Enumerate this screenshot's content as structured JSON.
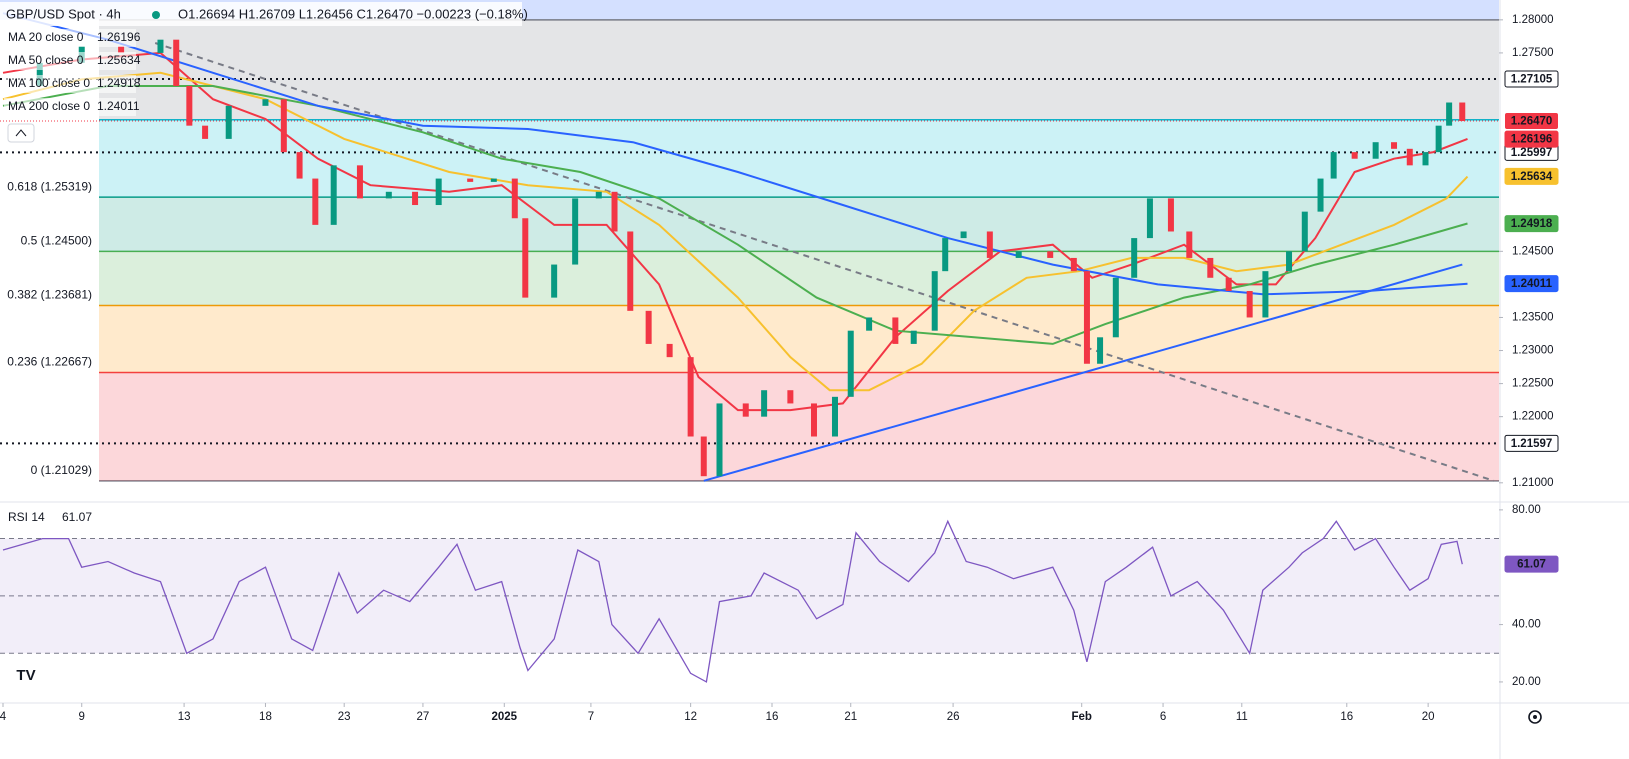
{
  "chart_data": [
    {
      "type": "candlestick",
      "title": "GBP/USD Spot · 4h",
      "subtitle": "O1.26694 H1.26709 L1.26456 C1.26470 −0.00223 (−0.18%)",
      "x": [
        0,
        1.4,
        3.0,
        4.5,
        6.0,
        6.6,
        7.1,
        7.7,
        8.6,
        10.0,
        10.7,
        11.3,
        11.9,
        12.6,
        13.6,
        14.7,
        15.7,
        16.6,
        17.8,
        18.7,
        19.5,
        19.9,
        21.0,
        21.8,
        22.7,
        23.3,
        23.9,
        24.6,
        25.4,
        26.2,
        26.7,
        27.3,
        28.3,
        29.0,
        30.0,
        30.9,
        31.7,
        32.3,
        33.0,
        34.0,
        34.7,
        35.5,
        35.9,
        36.6,
        37.6,
        38.7,
        39.9,
        40.8,
        41.3,
        41.8,
        42.4,
        43.1,
        43.7,
        44.5,
        45.2,
        46.0,
        46.7,
        47.5,
        48.1,
        49.0,
        49.6,
        50.2,
        50.7,
        51.5,
        52.3,
        53.0,
        53.6,
        54.2,
        54.7,
        55.1,
        55.6
      ],
      "values": [
        1.27,
        1.2735,
        1.276,
        1.275,
        1.277,
        1.27,
        1.264,
        1.262,
        1.267,
        1.268,
        1.26,
        1.256,
        1.249,
        1.258,
        1.253,
        1.254,
        1.252,
        1.256,
        1.2555,
        1.256,
        1.25,
        1.238,
        1.243,
        1.253,
        1.254,
        1.248,
        1.236,
        1.231,
        1.229,
        1.217,
        1.211,
        1.222,
        1.22,
        1.224,
        1.222,
        1.217,
        1.223,
        1.233,
        1.235,
        1.231,
        1.233,
        1.242,
        1.247,
        1.248,
        1.244,
        1.245,
        1.244,
        1.242,
        1.228,
        1.232,
        1.241,
        1.247,
        1.253,
        1.248,
        1.244,
        1.241,
        1.239,
        1.235,
        1.242,
        1.245,
        1.251,
        1.256,
        1.26,
        1.259,
        1.2615,
        1.2605,
        1.258,
        1.26,
        1.264,
        1.2675,
        1.2647
      ],
      "up_color": "#089981",
      "down_color": "#f23645",
      "xlim": [
        0,
        57
      ],
      "xticks": [
        {
          "value": 0,
          "label": "4"
        },
        {
          "value": 3.0,
          "label": "9"
        },
        {
          "value": 6.9,
          "label": "13"
        },
        {
          "value": 10.0,
          "label": "18"
        },
        {
          "value": 13.0,
          "label": "23"
        },
        {
          "value": 16.0,
          "label": "27"
        },
        {
          "value": 19.1,
          "label": "2025",
          "bold": true
        },
        {
          "value": 22.4,
          "label": "7"
        },
        {
          "value": 26.2,
          "label": "12"
        },
        {
          "value": 29.3,
          "label": "16"
        },
        {
          "value": 32.3,
          "label": "21"
        },
        {
          "value": 36.2,
          "label": "26"
        },
        {
          "value": 41.1,
          "label": "Feb",
          "bold": true
        },
        {
          "value": 44.2,
          "label": "6"
        },
        {
          "value": 47.2,
          "label": "11"
        },
        {
          "value": 51.2,
          "label": "16"
        },
        {
          "value": 54.3,
          "label": "20"
        }
      ],
      "ylim": [
        1.2074,
        1.283
      ],
      "yticks": [
        {
          "value": 1.28,
          "label": "1.28000"
        },
        {
          "value": 1.275,
          "label": "1.27500"
        },
        {
          "value": 1.245,
          "label": "1.24500"
        },
        {
          "value": 1.235,
          "label": "1.23500"
        },
        {
          "value": 1.23,
          "label": "1.23000"
        },
        {
          "value": 1.225,
          "label": "1.22500"
        },
        {
          "value": 1.22,
          "label": "1.22000"
        },
        {
          "value": 1.21,
          "label": "1.21000"
        }
      ],
      "last_price": {
        "value": 1.2647,
        "label": "1.26470"
      },
      "last_price_color": "#f23645",
      "series": [
        {
          "name": "MA 20 close 0",
          "color": "#f23645",
          "text_color": "#ffffff",
          "last": 1.26196,
          "x": [
            0,
            3,
            6,
            8,
            10,
            12,
            14,
            17,
            19,
            21,
            23,
            25,
            26.5,
            28,
            30,
            32,
            34,
            36,
            38,
            40,
            41.5,
            43,
            45,
            47,
            48.5,
            50,
            51.5,
            53,
            54.5,
            55.8
          ],
          "values": [
            1.272,
            1.274,
            1.275,
            1.268,
            1.265,
            1.259,
            1.255,
            1.254,
            1.255,
            1.249,
            1.249,
            1.24,
            1.226,
            1.221,
            1.221,
            1.222,
            1.232,
            1.239,
            1.245,
            1.246,
            1.241,
            1.243,
            1.246,
            1.24,
            1.24,
            1.247,
            1.257,
            1.259,
            1.26,
            1.262
          ]
        },
        {
          "name": "MA 50 close 0",
          "color": "#f7c12e",
          "text_color": "#131722",
          "last": 1.25634,
          "x": [
            0,
            3,
            6,
            10,
            13,
            17,
            20,
            23,
            25,
            28,
            30,
            31.5,
            33,
            35,
            37,
            39,
            41,
            43,
            45,
            47,
            49,
            51,
            53,
            55,
            55.8
          ],
          "values": [
            1.268,
            1.271,
            1.272,
            1.268,
            1.262,
            1.257,
            1.255,
            1.254,
            1.249,
            1.238,
            1.229,
            1.224,
            1.224,
            1.228,
            1.236,
            1.241,
            1.242,
            1.244,
            1.244,
            1.242,
            1.243,
            1.246,
            1.249,
            1.253,
            1.2563
          ]
        },
        {
          "name": "MA 100 close 0",
          "color": "#4caf50",
          "text_color": "#ffffff",
          "last": 1.24918,
          "x": [
            0,
            4,
            8,
            12,
            16,
            19,
            22,
            25,
            28,
            31,
            34,
            37,
            40,
            42,
            45,
            47.5,
            50,
            53,
            55.8
          ],
          "values": [
            1.267,
            1.27,
            1.27,
            1.267,
            1.263,
            1.259,
            1.257,
            1.253,
            1.246,
            1.238,
            1.233,
            1.232,
            1.231,
            1.234,
            1.238,
            1.24,
            1.243,
            1.246,
            1.2492
          ]
        },
        {
          "name": "MA 200 close 0",
          "color": "#2962ff",
          "text_color": "#ffffff",
          "last": 1.24011,
          "x": [
            0,
            4,
            8,
            12,
            16,
            20,
            24,
            28,
            32,
            36,
            40,
            44,
            48,
            52,
            55.8
          ],
          "values": [
            1.281,
            1.277,
            1.272,
            1.267,
            1.264,
            1.2635,
            1.2615,
            1.257,
            1.252,
            1.247,
            1.243,
            1.24,
            1.2385,
            1.239,
            1.2401
          ]
        }
      ],
      "fib_levels": [
        {
          "label": "0 (1.21029)",
          "value": 1.21029,
          "color": "#787b86"
        },
        {
          "label": "0.236 (1.22667)",
          "value": 1.22667,
          "color": "#f23645"
        },
        {
          "label": "0.382 (1.23681)",
          "value": 1.23681,
          "color": "#ff9800"
        },
        {
          "label": "0.5 (1.24500)",
          "value": 1.245,
          "color": "#4caf50"
        },
        {
          "label": "0.618 (1.25319)",
          "value": 1.25319,
          "color": "#089981"
        },
        {
          "label": null,
          "value": 1.2649,
          "color": "#00bcd4"
        },
        {
          "label": null,
          "value": 1.28,
          "color": "#787b86"
        }
      ],
      "dotted_levels": [
        1.27105,
        1.25997,
        1.21597
      ],
      "trendlines": [
        {
          "x": [
            26.7,
            55.6
          ],
          "values": [
            1.2103,
            1.243
          ],
          "color": "#2962ff",
          "dashed": false
        },
        {
          "x": [
            5.8,
            56.8
          ],
          "values": [
            1.2765,
            1.2103
          ],
          "color": "#787b86",
          "dashed": true
        }
      ]
    },
    {
      "type": "line",
      "title": "RSI 14",
      "last": 61.07,
      "color": "#7e57c2",
      "x": [
        0,
        1.5,
        2.5,
        3,
        4,
        5,
        6,
        7,
        8,
        9,
        10,
        11,
        11.8,
        12.8,
        13.5,
        14.5,
        15.5,
        16.6,
        17.3,
        18,
        19,
        19.7,
        20,
        21,
        21.9,
        22.7,
        23.2,
        24.2,
        25,
        26.2,
        26.8,
        27.3,
        28.5,
        29,
        30.3,
        31,
        32,
        32.5,
        33.4,
        34.5,
        35.5,
        36,
        36.7,
        37.5,
        38.5,
        40,
        40.8,
        41.3,
        42,
        42.8,
        43.8,
        44.5,
        45.5,
        46.5,
        47.5,
        48,
        49,
        49.5,
        50.3,
        50.8,
        51.5,
        52.3,
        53,
        53.6,
        54.3,
        54.8,
        55.4,
        55.6
      ],
      "values": [
        66,
        70,
        70,
        60,
        62,
        58,
        55,
        30,
        35,
        55,
        60,
        35,
        31,
        58,
        44,
        52,
        48,
        60,
        68,
        52,
        55,
        32,
        24,
        35,
        66,
        62,
        40,
        30,
        42,
        23,
        20,
        48,
        50,
        58,
        52,
        42,
        47,
        72,
        62,
        55,
        65,
        76,
        62,
        60,
        56,
        60,
        45,
        27,
        55,
        60,
        67,
        50,
        55,
        45,
        30,
        52,
        60,
        65,
        70,
        76,
        66,
        70,
        60,
        52,
        56,
        68,
        69,
        61.07
      ],
      "xlim": [
        0,
        57
      ],
      "ylim": [
        13.7,
        81.7
      ],
      "yticks": [
        {
          "value": 80,
          "label": "80.00"
        },
        {
          "value": 40,
          "label": "40.00"
        },
        {
          "value": 20,
          "label": "20.00"
        }
      ],
      "levels": [
        70,
        50,
        30
      ]
    }
  ]
}
